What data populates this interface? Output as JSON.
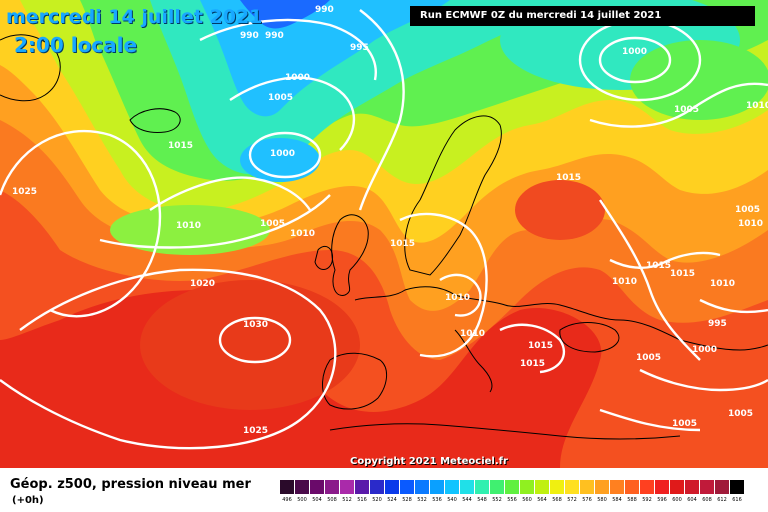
{
  "title": "mercredi 14 juillet 2021",
  "subtitle": "2:00 locale",
  "run_label": "Run ECMWF 0Z du mercredi 14 juillet 2021",
  "copyright": "Copyright 2021 Meteociel.fr",
  "legend": {
    "title": "Géop. z500, pression niveau mer",
    "subtitle": "(+0h)",
    "ticks": [
      "496",
      "500",
      "504",
      "508",
      "512",
      "516",
      "520",
      "524",
      "528",
      "532",
      "536",
      "540",
      "544",
      "548",
      "552",
      "556",
      "560",
      "564",
      "568",
      "572",
      "576",
      "580",
      "584",
      "588",
      "592",
      "596",
      "600",
      "604",
      "608",
      "612",
      "616"
    ],
    "colors": [
      "#2a0a2a",
      "#4a0a4a",
      "#6a0a6a",
      "#8a1a8a",
      "#aa2aaa",
      "#5a1aaa",
      "#2a2aca",
      "#0a3aea",
      "#0a5aff",
      "#0a7aff",
      "#0aa0ff",
      "#10c4ff",
      "#20e0e8",
      "#30f0b0",
      "#40f070",
      "#60f040",
      "#90f020",
      "#c0f010",
      "#f0f010",
      "#ffe020",
      "#ffc020",
      "#ffa020",
      "#ff8020",
      "#ff6020",
      "#ff4020",
      "#f02020",
      "#e01a1a",
      "#d01a2a",
      "#c01a3a",
      "#a01a3a",
      "#000000"
    ]
  },
  "pressure_labels": [
    "990",
    "990",
    "990",
    "995",
    "1000",
    "1005",
    "1000",
    "1015",
    "1025",
    "1010",
    "1005",
    "1010",
    "1020",
    "1030",
    "1025",
    "1015",
    "1015",
    "1010",
    "1010",
    "1015",
    "1015",
    "1000",
    "1005",
    "1010",
    "1005",
    "1010",
    "1015",
    "1015",
    "1010",
    "1010",
    "995",
    "1005",
    "1000",
    "1005",
    "1005"
  ],
  "map_colors": {
    "sea_deep_red": "#e82a1a",
    "red": "#f04a20",
    "orange_red": "#f86a20",
    "orange": "#ff9020",
    "yellow_orange": "#ffb820",
    "yellow": "#ffe020",
    "yellow_green": "#d8f020",
    "green": "#8cf030",
    "aqua": "#30f0c0",
    "cyan": "#20c8ff",
    "blue": "#1a70ff"
  }
}
